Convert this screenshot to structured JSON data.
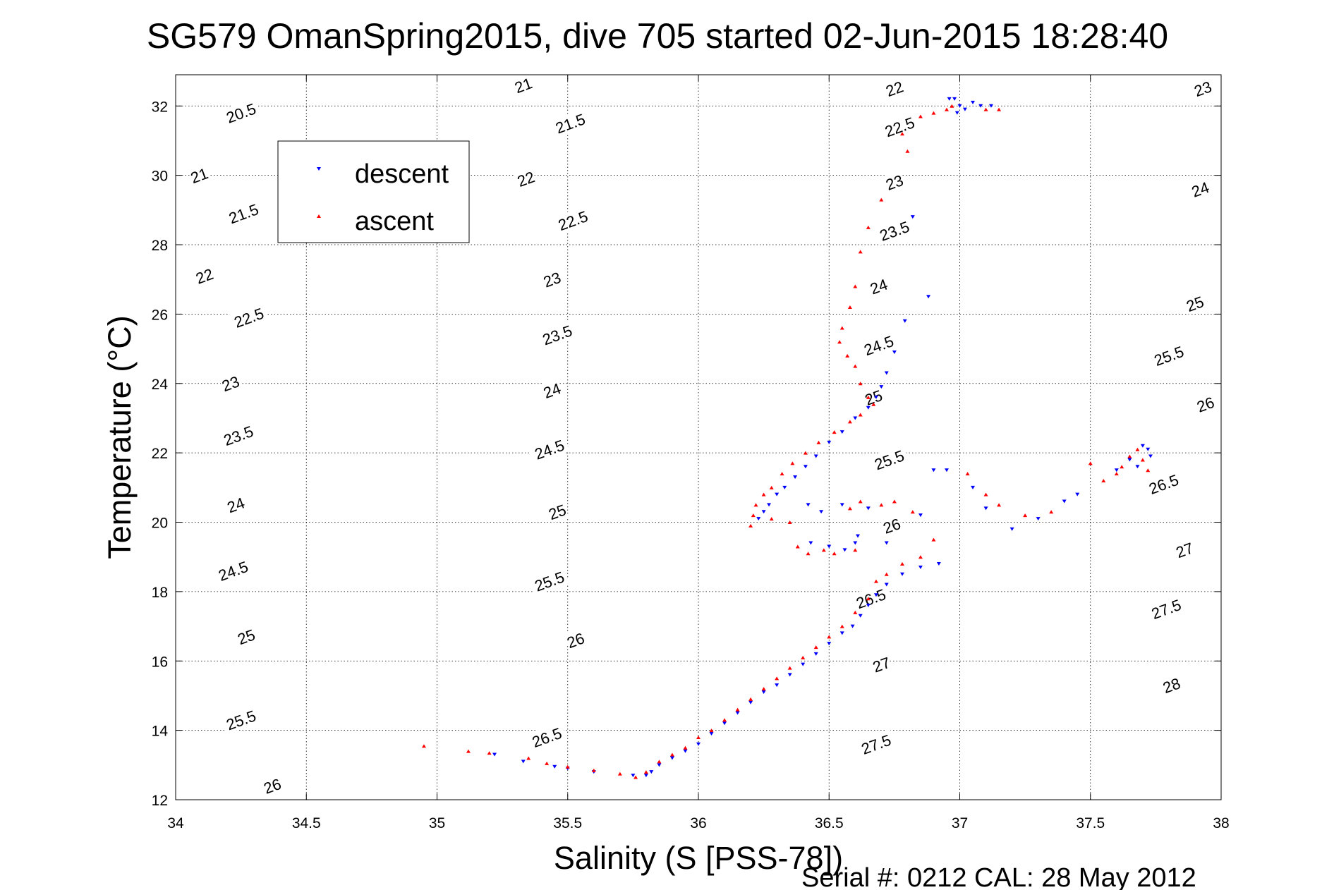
{
  "chart_data": {
    "type": "scatter",
    "title": "SG579 OmanSpring2015, dive 705 started 02-Jun-2015 18:28:40",
    "xlabel": "Salinity (S [PSS-78])",
    "ylabel": "Temperature (°C)",
    "xlim": [
      34,
      38
    ],
    "ylim": [
      12,
      32.9
    ],
    "xticks": [
      "34",
      "34.5",
      "35",
      "35.5",
      "36",
      "36.5",
      "37",
      "37.5",
      "38"
    ],
    "yticks": [
      "12",
      "14",
      "16",
      "18",
      "20",
      "22",
      "24",
      "26",
      "28",
      "30",
      "32"
    ],
    "grid": true,
    "legend_position": "top-left",
    "footer": "Serial #: 0212  CAL: 28 May 2012",
    "contour_levels": [
      20,
      20.5,
      21,
      21.5,
      22,
      22.5,
      23,
      23.5,
      24,
      24.5,
      25,
      25.5,
      26,
      26.5,
      27,
      27.5,
      28
    ],
    "contour_labels": [
      {
        "text": "20.5",
        "s": 34.25,
        "t": 31.8
      },
      {
        "text": "21",
        "s": 34.09,
        "t": 30.0
      },
      {
        "text": "21.5",
        "s": 34.26,
        "t": 28.9
      },
      {
        "text": "22",
        "s": 34.11,
        "t": 27.1
      },
      {
        "text": "22.5",
        "s": 34.28,
        "t": 25.9
      },
      {
        "text": "23",
        "s": 34.21,
        "t": 24.0
      },
      {
        "text": "23.5",
        "s": 34.24,
        "t": 22.5
      },
      {
        "text": "24",
        "s": 34.23,
        "t": 20.5
      },
      {
        "text": "24.5",
        "s": 34.22,
        "t": 18.6
      },
      {
        "text": "25",
        "s": 34.27,
        "t": 16.7
      },
      {
        "text": "25.5",
        "s": 34.25,
        "t": 14.3
      },
      {
        "text": "26",
        "s": 34.37,
        "t": 12.4
      },
      {
        "text": "21",
        "s": 35.33,
        "t": 32.6
      },
      {
        "text": "21.5",
        "s": 35.51,
        "t": 31.5
      },
      {
        "text": "22",
        "s": 35.34,
        "t": 29.9
      },
      {
        "text": "22.5",
        "s": 35.52,
        "t": 28.7
      },
      {
        "text": "23",
        "s": 35.44,
        "t": 27.0
      },
      {
        "text": "23.5",
        "s": 35.46,
        "t": 25.4
      },
      {
        "text": "24",
        "s": 35.44,
        "t": 23.8
      },
      {
        "text": "24.5",
        "s": 35.43,
        "t": 22.1
      },
      {
        "text": "25",
        "s": 35.46,
        "t": 20.3
      },
      {
        "text": "25.5",
        "s": 35.43,
        "t": 18.3
      },
      {
        "text": "26",
        "s": 35.53,
        "t": 16.6
      },
      {
        "text": "26.5",
        "s": 35.42,
        "t": 13.8
      },
      {
        "text": "22",
        "s": 36.75,
        "t": 32.5
      },
      {
        "text": "22.5",
        "s": 36.77,
        "t": 31.4
      },
      {
        "text": "23",
        "s": 36.75,
        "t": 29.8
      },
      {
        "text": "23.5",
        "s": 36.75,
        "t": 28.4
      },
      {
        "text": "24",
        "s": 36.69,
        "t": 26.8
      },
      {
        "text": "24.5",
        "s": 36.69,
        "t": 25.1
      },
      {
        "text": "25",
        "s": 36.67,
        "t": 23.6
      },
      {
        "text": "25.5",
        "s": 36.73,
        "t": 21.8
      },
      {
        "text": "26",
        "s": 36.74,
        "t": 19.9
      },
      {
        "text": "26.5",
        "s": 36.66,
        "t": 17.8
      },
      {
        "text": "27",
        "s": 36.7,
        "t": 15.9
      },
      {
        "text": "27.5",
        "s": 36.68,
        "t": 13.6
      },
      {
        "text": "23",
        "s": 37.93,
        "t": 32.5
      },
      {
        "text": "24",
        "s": 37.92,
        "t": 29.6
      },
      {
        "text": "25",
        "s": 37.9,
        "t": 26.3
      },
      {
        "text": "25.5",
        "s": 37.8,
        "t": 24.8
      },
      {
        "text": "26",
        "s": 37.94,
        "t": 23.4
      },
      {
        "text": "26.5",
        "s": 37.78,
        "t": 21.1
      },
      {
        "text": "27",
        "s": 37.86,
        "t": 19.2
      },
      {
        "text": "27.5",
        "s": 37.79,
        "t": 17.5
      },
      {
        "text": "28",
        "s": 37.81,
        "t": 15.3
      }
    ],
    "series": [
      {
        "name": "descent",
        "color": "#0000ff",
        "marker": "triangle-down",
        "points": [
          [
            36.96,
            32.2
          ],
          [
            36.98,
            32.2
          ],
          [
            37.0,
            32.0
          ],
          [
            37.02,
            31.9
          ],
          [
            37.05,
            32.1
          ],
          [
            37.08,
            32.0
          ],
          [
            37.12,
            32.0
          ],
          [
            36.99,
            31.8
          ],
          [
            36.82,
            28.8
          ],
          [
            36.88,
            26.5
          ],
          [
            36.79,
            25.8
          ],
          [
            36.75,
            24.9
          ],
          [
            36.72,
            24.3
          ],
          [
            36.7,
            23.9
          ],
          [
            36.68,
            23.6
          ],
          [
            36.65,
            23.3
          ],
          [
            36.6,
            23.0
          ],
          [
            36.55,
            22.6
          ],
          [
            36.5,
            22.3
          ],
          [
            36.45,
            21.9
          ],
          [
            36.41,
            21.6
          ],
          [
            36.37,
            21.3
          ],
          [
            36.33,
            21.0
          ],
          [
            36.3,
            20.8
          ],
          [
            36.27,
            20.5
          ],
          [
            36.25,
            20.3
          ],
          [
            36.23,
            20.1
          ],
          [
            36.42,
            20.5
          ],
          [
            36.47,
            20.3
          ],
          [
            36.55,
            20.5
          ],
          [
            36.65,
            20.4
          ],
          [
            36.61,
            19.6
          ],
          [
            36.43,
            19.4
          ],
          [
            36.5,
            19.3
          ],
          [
            36.56,
            19.2
          ],
          [
            36.6,
            19.4
          ],
          [
            36.72,
            19.4
          ],
          [
            36.85,
            20.2
          ],
          [
            36.9,
            21.5
          ],
          [
            36.95,
            21.5
          ],
          [
            37.05,
            21.0
          ],
          [
            37.1,
            20.4
          ],
          [
            37.2,
            19.8
          ],
          [
            37.3,
            20.1
          ],
          [
            37.4,
            20.6
          ],
          [
            37.45,
            20.8
          ],
          [
            37.6,
            21.5
          ],
          [
            37.65,
            21.8
          ],
          [
            37.7,
            22.2
          ],
          [
            37.72,
            22.1
          ],
          [
            37.73,
            21.9
          ],
          [
            37.68,
            21.6
          ],
          [
            36.92,
            18.8
          ],
          [
            36.85,
            18.7
          ],
          [
            36.78,
            18.5
          ],
          [
            36.72,
            18.2
          ],
          [
            36.68,
            17.9
          ],
          [
            36.65,
            17.6
          ],
          [
            36.62,
            17.3
          ],
          [
            36.59,
            17.0
          ],
          [
            36.55,
            16.8
          ],
          [
            36.5,
            16.5
          ],
          [
            36.45,
            16.2
          ],
          [
            36.4,
            15.9
          ],
          [
            36.35,
            15.6
          ],
          [
            36.3,
            15.3
          ],
          [
            36.25,
            15.1
          ],
          [
            36.2,
            14.8
          ],
          [
            36.15,
            14.5
          ],
          [
            36.1,
            14.2
          ],
          [
            36.05,
            13.9
          ],
          [
            36.0,
            13.6
          ],
          [
            35.95,
            13.4
          ],
          [
            35.9,
            13.2
          ],
          [
            35.85,
            13.0
          ],
          [
            35.82,
            12.8
          ],
          [
            35.8,
            12.7
          ],
          [
            35.75,
            12.7
          ],
          [
            35.6,
            12.8
          ],
          [
            35.5,
            12.9
          ],
          [
            35.45,
            12.95
          ],
          [
            35.33,
            13.1
          ],
          [
            35.22,
            13.3
          ]
        ]
      },
      {
        "name": "ascent",
        "color": "#ff0000",
        "marker": "triangle-up",
        "points": [
          [
            36.85,
            31.7
          ],
          [
            36.9,
            31.8
          ],
          [
            36.95,
            31.9
          ],
          [
            36.97,
            32.0
          ],
          [
            37.1,
            31.9
          ],
          [
            37.15,
            31.9
          ],
          [
            36.78,
            31.2
          ],
          [
            36.8,
            30.7
          ],
          [
            36.7,
            29.3
          ],
          [
            36.65,
            28.5
          ],
          [
            36.62,
            27.8
          ],
          [
            36.6,
            26.8
          ],
          [
            36.58,
            26.2
          ],
          [
            36.55,
            25.6
          ],
          [
            36.54,
            25.2
          ],
          [
            36.57,
            24.8
          ],
          [
            36.6,
            24.5
          ],
          [
            36.62,
            24.0
          ],
          [
            36.65,
            23.6
          ],
          [
            36.67,
            23.4
          ],
          [
            36.62,
            23.1
          ],
          [
            36.58,
            22.9
          ],
          [
            36.52,
            22.6
          ],
          [
            36.46,
            22.3
          ],
          [
            36.41,
            22.0
          ],
          [
            36.36,
            21.7
          ],
          [
            36.32,
            21.4
          ],
          [
            36.28,
            21.0
          ],
          [
            36.25,
            20.8
          ],
          [
            36.22,
            20.5
          ],
          [
            36.21,
            20.2
          ],
          [
            36.2,
            19.9
          ],
          [
            36.28,
            20.1
          ],
          [
            36.35,
            20.0
          ],
          [
            36.38,
            19.3
          ],
          [
            36.42,
            19.1
          ],
          [
            36.48,
            19.2
          ],
          [
            36.52,
            19.1
          ],
          [
            36.6,
            19.2
          ],
          [
            36.58,
            20.4
          ],
          [
            36.62,
            20.6
          ],
          [
            36.7,
            20.5
          ],
          [
            36.75,
            20.6
          ],
          [
            36.82,
            20.3
          ],
          [
            36.9,
            19.5
          ],
          [
            36.85,
            19.0
          ],
          [
            36.78,
            18.8
          ],
          [
            36.72,
            18.5
          ],
          [
            36.68,
            18.3
          ],
          [
            36.65,
            17.8
          ],
          [
            36.6,
            17.4
          ],
          [
            36.55,
            17.0
          ],
          [
            36.5,
            16.7
          ],
          [
            36.45,
            16.4
          ],
          [
            36.4,
            16.1
          ],
          [
            36.35,
            15.8
          ],
          [
            36.3,
            15.5
          ],
          [
            36.25,
            15.2
          ],
          [
            36.2,
            14.9
          ],
          [
            36.15,
            14.6
          ],
          [
            36.1,
            14.3
          ],
          [
            36.05,
            14.0
          ],
          [
            36.0,
            13.8
          ],
          [
            35.95,
            13.5
          ],
          [
            35.9,
            13.3
          ],
          [
            35.85,
            13.1
          ],
          [
            35.8,
            12.8
          ],
          [
            35.76,
            12.65
          ],
          [
            35.7,
            12.75
          ],
          [
            35.6,
            12.85
          ],
          [
            35.5,
            12.95
          ],
          [
            35.42,
            13.05
          ],
          [
            35.35,
            13.2
          ],
          [
            35.2,
            13.35
          ],
          [
            35.12,
            13.4
          ],
          [
            34.95,
            13.55
          ],
          [
            37.03,
            21.4
          ],
          [
            37.1,
            20.8
          ],
          [
            37.15,
            20.5
          ],
          [
            37.25,
            20.2
          ],
          [
            37.35,
            20.3
          ],
          [
            37.5,
            21.7
          ],
          [
            37.55,
            21.2
          ],
          [
            37.6,
            21.4
          ],
          [
            37.62,
            21.6
          ],
          [
            37.65,
            21.9
          ],
          [
            37.68,
            22.1
          ],
          [
            37.7,
            21.8
          ],
          [
            37.72,
            21.5
          ]
        ]
      }
    ]
  }
}
